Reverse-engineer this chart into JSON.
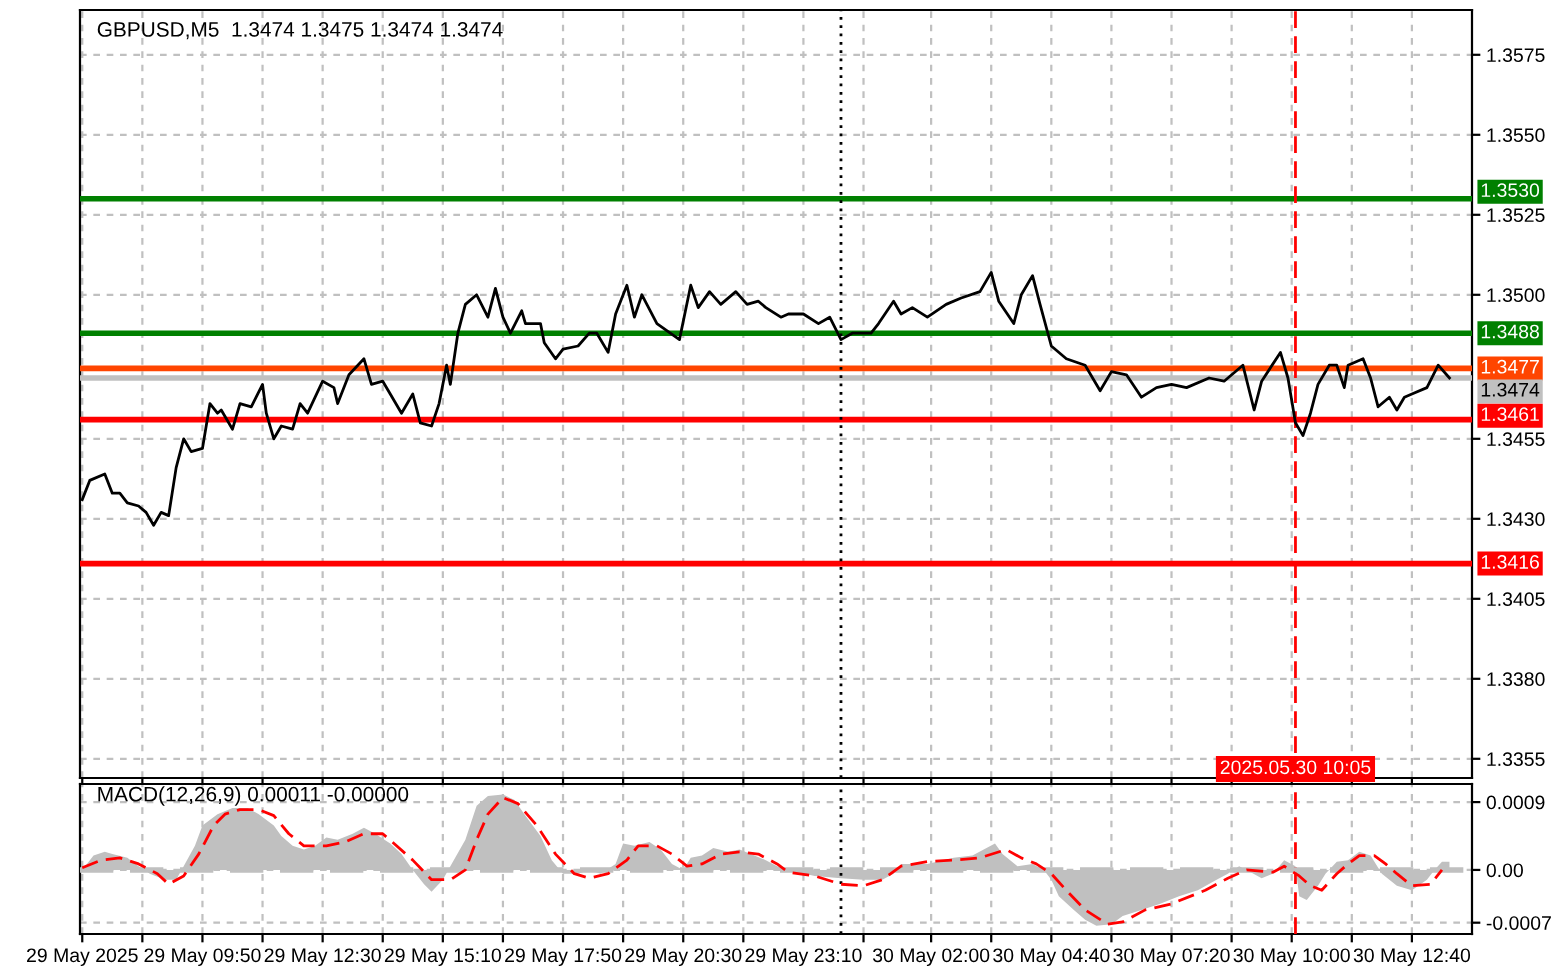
{
  "chart_data": [
    {
      "type": "line",
      "title": "GBPUSD,M5  1.3474 1.3475 1.3474 1.3474",
      "series": [
        {
          "color": "#000000",
          "x": [
            "2025-05-29T07:10",
            "2025-05-29T07:20",
            "2025-05-29T07:40",
            "2025-05-29T07:50",
            "2025-05-29T08:00",
            "2025-05-29T08:10",
            "2025-05-29T08:25",
            "2025-05-29T08:35",
            "2025-05-29T08:45",
            "2025-05-29T08:55",
            "2025-05-29T09:05",
            "2025-05-29T09:15",
            "2025-05-29T09:25",
            "2025-05-29T09:35",
            "2025-05-29T09:50",
            "2025-05-29T10:00",
            "2025-05-29T10:10",
            "2025-05-29T10:15",
            "2025-05-29T10:30",
            "2025-05-29T10:40",
            "2025-05-29T10:55",
            "2025-05-29T11:10",
            "2025-05-29T11:15",
            "2025-05-29T11:25",
            "2025-05-29T11:35",
            "2025-05-29T11:50",
            "2025-05-29T12:00",
            "2025-05-29T12:10",
            "2025-05-29T12:20",
            "2025-05-29T12:30",
            "2025-05-29T12:45",
            "2025-05-29T12:50",
            "2025-05-29T13:05",
            "2025-05-29T13:25",
            "2025-05-29T13:35",
            "2025-05-29T13:50",
            "2025-05-29T14:00",
            "2025-05-29T14:15",
            "2025-05-29T14:30",
            "2025-05-29T14:40",
            "2025-05-29T14:55",
            "2025-05-29T15:05",
            "2025-05-29T15:15",
            "2025-05-29T15:20",
            "2025-05-29T15:30",
            "2025-05-29T15:40",
            "2025-05-29T15:55",
            "2025-05-29T16:10",
            "2025-05-29T16:20",
            "2025-05-29T16:30",
            "2025-05-29T16:40",
            "2025-05-29T16:55",
            "2025-05-29T17:00",
            "2025-05-29T17:20",
            "2025-05-29T17:25",
            "2025-05-29T17:40",
            "2025-05-29T17:50",
            "2025-05-29T18:10",
            "2025-05-29T18:25",
            "2025-05-29T18:35",
            "2025-05-29T18:50",
            "2025-05-29T19:00",
            "2025-05-29T19:15",
            "2025-05-29T19:25",
            "2025-05-29T19:35",
            "2025-05-29T19:55",
            "2025-05-29T20:25",
            "2025-05-29T20:40",
            "2025-05-29T20:50",
            "2025-05-29T21:05",
            "2025-05-29T21:20",
            "2025-05-29T21:40",
            "2025-05-29T21:55",
            "2025-05-29T22:10",
            "2025-05-29T22:20",
            "2025-05-29T22:40",
            "2025-05-29T22:50",
            "2025-05-29T23:10",
            "2025-05-29T23:30",
            "2025-05-29T23:45",
            "2025-05-30T00:00",
            "2025-05-30T00:15",
            "2025-05-30T00:40",
            "2025-05-30T00:50",
            "2025-05-30T01:10",
            "2025-05-30T01:20",
            "2025-05-30T01:35",
            "2025-05-30T01:55",
            "2025-05-30T02:20",
            "2025-05-30T02:40",
            "2025-05-30T03:05",
            "2025-05-30T03:20",
            "2025-05-30T03:30",
            "2025-05-30T03:50",
            "2025-05-30T04:00",
            "2025-05-30T04:15",
            "2025-05-30T04:25",
            "2025-05-30T04:40",
            "2025-05-30T05:00",
            "2025-05-30T05:25",
            "2025-05-30T05:45",
            "2025-05-30T06:00",
            "2025-05-30T06:20",
            "2025-05-30T06:40",
            "2025-05-30T07:00",
            "2025-05-30T07:20",
            "2025-05-30T07:40",
            "2025-05-30T08:10",
            "2025-05-30T08:30",
            "2025-05-30T08:55",
            "2025-05-30T09:10",
            "2025-05-30T09:20",
            "2025-05-30T09:45",
            "2025-05-30T09:55",
            "2025-05-30T10:05",
            "2025-05-30T10:15",
            "2025-05-30T10:25",
            "2025-05-30T10:35",
            "2025-05-30T10:50",
            "2025-05-30T11:00",
            "2025-05-30T11:10",
            "2025-05-30T11:15",
            "2025-05-30T11:35",
            "2025-05-30T11:45",
            "2025-05-30T11:55",
            "2025-05-30T12:10",
            "2025-05-30T12:20",
            "2025-05-30T12:30",
            "2025-05-30T12:40",
            "2025-05-30T13:00",
            "2025-05-30T13:15",
            "2025-05-30T13:30"
          ],
          "values": [
            1.3436,
            1.3442,
            1.3444,
            1.3438,
            1.3438,
            1.3435,
            1.3434,
            1.3432,
            1.3428,
            1.3432,
            1.3431,
            1.3446,
            1.3455,
            1.3451,
            1.3452,
            1.3466,
            1.3463,
            1.3464,
            1.3458,
            1.3466,
            1.3465,
            1.3472,
            1.3463,
            1.3455,
            1.3459,
            1.3458,
            1.3466,
            1.3463,
            1.3468,
            1.3473,
            1.3471,
            1.3466,
            1.3475,
            1.348,
            1.3472,
            1.3473,
            1.3469,
            1.3463,
            1.3469,
            1.346,
            1.3459,
            1.3466,
            1.3478,
            1.3472,
            1.3488,
            1.3497,
            1.35,
            1.3493,
            1.3502,
            1.3493,
            1.3488,
            1.3495,
            1.3491,
            1.3491,
            1.3485,
            1.348,
            1.3483,
            1.3484,
            1.3488,
            1.3488,
            1.3482,
            1.3494,
            1.3503,
            1.3493,
            1.35,
            1.3491,
            1.3486,
            1.3503,
            1.3496,
            1.3501,
            1.3497,
            1.3501,
            1.3497,
            1.3498,
            1.3496,
            1.3493,
            1.3494,
            1.3494,
            1.3491,
            1.3493,
            1.3486,
            1.3488,
            1.3488,
            1.3491,
            1.3498,
            1.3494,
            1.3496,
            1.3493,
            1.3497,
            1.3499,
            1.3501,
            1.3507,
            1.3498,
            1.3491,
            1.35,
            1.3506,
            1.3497,
            1.3484,
            1.348,
            1.3478,
            1.347,
            1.3476,
            1.3475,
            1.3468,
            1.3471,
            1.3472,
            1.3471,
            1.3474,
            1.3473,
            1.3478,
            1.3464,
            1.3473,
            1.3482,
            1.3474,
            1.346,
            1.3456,
            1.3463,
            1.3472,
            1.3478,
            1.3478,
            1.3471,
            1.3478,
            1.348,
            1.3474,
            1.3465,
            1.3468,
            1.3464,
            1.3468,
            1.3469,
            1.3471,
            1.3478,
            1.3474
          ]
        }
      ],
      "xlim": [
        "2025-05-29T07:07",
        "2025-05-30T14:00"
      ],
      "ylim": [
        1.3349,
        1.3589
      ],
      "xticks": [
        {
          "value": "2025-05-29T07:10",
          "label": null
        },
        {
          "value": "2025-05-29T08:30",
          "label": null
        },
        {
          "value": "2025-05-29T09:50",
          "label": null
        },
        {
          "value": "2025-05-29T11:10",
          "label": null
        },
        {
          "value": "2025-05-29T12:30",
          "label": null
        },
        {
          "value": "2025-05-29T13:50",
          "label": null
        },
        {
          "value": "2025-05-29T15:10",
          "label": null
        },
        {
          "value": "2025-05-29T16:30",
          "label": null
        },
        {
          "value": "2025-05-29T17:50",
          "label": null
        },
        {
          "value": "2025-05-29T19:10",
          "label": null
        },
        {
          "value": "2025-05-29T20:30",
          "label": null
        },
        {
          "value": "2025-05-29T21:50",
          "label": null
        },
        {
          "value": "2025-05-29T23:10",
          "label": null
        },
        {
          "value": "2025-05-30T00:30",
          "label": null
        },
        {
          "value": "2025-05-30T02:00",
          "label": null
        },
        {
          "value": "2025-05-30T03:20",
          "label": null
        },
        {
          "value": "2025-05-30T04:40",
          "label": null
        },
        {
          "value": "2025-05-30T06:00",
          "label": null
        },
        {
          "value": "2025-05-30T07:20",
          "label": null
        },
        {
          "value": "2025-05-30T08:40",
          "label": null
        },
        {
          "value": "2025-05-30T10:00",
          "label": null
        },
        {
          "value": "2025-05-30T11:20",
          "label": null
        },
        {
          "value": "2025-05-30T12:40",
          "label": null
        }
      ],
      "yticks": [
        1.3355,
        {
          "value": 1.338,
          "label": "1.3380"
        },
        1.3405,
        {
          "value": 1.343,
          "label": "1.3430"
        },
        1.3455,
        {
          "value": 1.35,
          "label": "1.3500"
        },
        1.3525,
        {
          "value": 1.355,
          "label": "1.3550"
        },
        1.3575
      ],
      "tick_labels": "y",
      "grid": true,
      "ref_lines": [
        {
          "axis": "y",
          "value": 1.353,
          "label": "1.3530",
          "color": "#008000"
        },
        {
          "axis": "y",
          "value": 1.3488,
          "label": "1.3488",
          "color": "#008000"
        },
        {
          "axis": "y",
          "value": 1.3477,
          "label": "1.3477",
          "color": "#ff4500"
        },
        {
          "axis": "y",
          "value": 1.3474,
          "label": "1.3474",
          "color": "#c0c0c0"
        },
        {
          "axis": "y",
          "value": 1.3461,
          "label": "1.3461",
          "color": "#ff0000"
        },
        {
          "axis": "y",
          "value": 1.3416,
          "label": "1.3416",
          "color": "#ff0000"
        },
        {
          "axis": "x",
          "value": "2025-05-30T00:00",
          "color": "#000000",
          "line_style": "dotted"
        },
        {
          "axis": "x",
          "value": "2025-05-30T10:05",
          "label": "2025.05.30 10:05",
          "color": "#ff0000",
          "line_style": "dashed"
        }
      ]
    },
    {
      "type": "area",
      "title": "MACD(12,26,9) 0.00011 -0.00000",
      "series": [
        {
          "type": "area",
          "color": "#c0c0c0",
          "x": [
            "2025-05-29T07:10",
            "2025-05-29T07:25",
            "2025-05-29T07:40",
            "2025-05-29T07:50",
            "2025-05-29T08:10",
            "2025-05-29T08:25",
            "2025-05-29T08:40",
            "2025-05-29T09:00",
            "2025-05-29T09:15",
            "2025-05-29T09:25",
            "2025-05-29T09:40",
            "2025-05-29T09:50",
            "2025-05-29T10:10",
            "2025-05-29T10:30",
            "2025-05-29T10:50",
            "2025-05-29T11:05",
            "2025-05-29T11:25",
            "2025-05-29T11:35",
            "2025-05-29T11:50",
            "2025-05-29T12:05",
            "2025-05-29T12:20",
            "2025-05-29T12:35",
            "2025-05-29T12:50",
            "2025-05-29T13:10",
            "2025-05-29T13:25",
            "2025-05-29T13:40",
            "2025-05-29T14:00",
            "2025-05-29T14:15",
            "2025-05-29T14:30",
            "2025-05-29T14:45",
            "2025-05-29T14:55",
            "2025-05-29T15:10",
            "2025-05-29T15:20",
            "2025-05-29T15:40",
            "2025-05-29T15:55",
            "2025-05-29T16:10",
            "2025-05-29T16:30",
            "2025-05-29T16:45",
            "2025-05-29T17:00",
            "2025-05-29T17:20",
            "2025-05-29T17:35",
            "2025-05-29T17:50",
            "2025-05-29T18:10",
            "2025-05-29T18:25",
            "2025-05-29T18:40",
            "2025-05-29T19:00",
            "2025-05-29T19:10",
            "2025-05-29T19:25",
            "2025-05-29T19:45",
            "2025-05-29T20:00",
            "2025-05-29T20:15",
            "2025-05-29T20:30",
            "2025-05-29T20:40",
            "2025-05-29T20:55",
            "2025-05-29T21:10",
            "2025-05-29T21:30",
            "2025-05-29T21:45",
            "2025-05-29T22:00",
            "2025-05-29T22:20",
            "2025-05-29T22:35",
            "2025-05-29T22:50",
            "2025-05-29T23:25",
            "2025-05-30T00:00",
            "2025-05-30T00:30",
            "2025-05-30T00:55",
            "2025-05-30T01:10",
            "2025-05-30T01:20",
            "2025-05-30T01:55",
            "2025-05-30T02:30",
            "2025-05-30T02:55",
            "2025-05-30T03:10",
            "2025-05-30T03:25",
            "2025-05-30T03:35",
            "2025-05-30T03:55",
            "2025-05-30T04:15",
            "2025-05-30T04:30",
            "2025-05-30T04:40",
            "2025-05-30T04:50",
            "2025-05-30T05:10",
            "2025-05-30T05:25",
            "2025-05-30T05:40",
            "2025-05-30T06:00",
            "2025-05-30T06:15",
            "2025-05-30T06:40",
            "2025-05-30T07:05",
            "2025-05-30T07:30",
            "2025-05-30T07:55",
            "2025-05-30T08:20",
            "2025-05-30T08:35",
            "2025-05-30T08:50",
            "2025-05-30T09:00",
            "2025-05-30T09:20",
            "2025-05-30T09:35",
            "2025-05-30T09:50",
            "2025-05-30T10:05",
            "2025-05-30T10:10",
            "2025-05-30T10:20",
            "2025-05-30T10:35",
            "2025-05-30T10:45",
            "2025-05-30T11:00",
            "2025-05-30T11:15",
            "2025-05-30T11:30",
            "2025-05-30T11:45",
            "2025-05-30T12:00",
            "2025-05-30T12:20",
            "2025-05-30T12:40",
            "2025-05-30T13:00",
            "2025-05-30T13:10",
            "2025-05-30T13:20",
            "2025-05-30T13:30"
          ],
          "values": [
            0,
            0.00019,
            0.00024,
            0.00021,
            0.00016,
            5e-05,
            -5e-05,
            -0.00013,
            -0.00013,
            5e-05,
            0.00032,
            0.00059,
            0.00074,
            0.00082,
            0.00082,
            0.00074,
            0.00059,
            0.00045,
            0.00032,
            0.00027,
            0.00032,
            0.00043,
            0.0004,
            0.00048,
            0.00056,
            0.00048,
            0.00035,
            0.00021,
            0,
            -0.00019,
            -0.00029,
            -0.00013,
            5e-05,
            0.0004,
            0.00085,
            0.00098,
            0.001,
            0.00093,
            0.00072,
            0.00045,
            0.00013,
            -5e-05,
            -5e-05,
            0,
            -5e-05,
            8e-05,
            0.00035,
            0.00032,
            0.00037,
            0.00027,
            8e-05,
            0,
            0.00016,
            0.00019,
            0.00029,
            0.00024,
            0.00027,
            0.00021,
            0.00013,
            5e-05,
            0,
            -8e-05,
            -0.00011,
            -0.00013,
            -0.00013,
            -5e-05,
            8e-05,
            8e-05,
            0.00016,
            0.00019,
            0.00027,
            0.00035,
            0.00021,
            5e-05,
            8e-05,
            0,
            -0.00013,
            -0.00035,
            -0.00053,
            -0.00066,
            -0.00074,
            -0.00072,
            -0.00061,
            -0.00053,
            -0.00045,
            -0.00035,
            -0.00027,
            -0.00013,
            -5e-05,
            5e-05,
            0,
            -0.00011,
            -5e-05,
            0.00013,
            5e-05,
            -0.00035,
            -0.0004,
            -0.00021,
            -5e-05,
            0.00011,
            0.00013,
            0.00024,
            0.00019,
            -5e-05,
            -0.00021,
            -0.00027,
            -0.00013,
            0,
            0.00011,
            0.00011
          ]
        },
        {
          "type": "line",
          "color": "#ff0000",
          "line_style": "dashed",
          "x": [
            "2025-05-29T07:10",
            "2025-05-29T07:35",
            "2025-05-29T08:00",
            "2025-05-29T08:25",
            "2025-05-29T08:50",
            "2025-05-29T09:05",
            "2025-05-29T09:25",
            "2025-05-29T09:45",
            "2025-05-29T10:05",
            "2025-05-29T10:20",
            "2025-05-29T10:40",
            "2025-05-29T11:05",
            "2025-05-29T11:25",
            "2025-05-29T11:45",
            "2025-05-29T12:05",
            "2025-05-29T12:35",
            "2025-05-29T13:00",
            "2025-05-29T13:25",
            "2025-05-29T13:50",
            "2025-05-29T14:05",
            "2025-05-29T14:30",
            "2025-05-29T14:55",
            "2025-05-29T15:20",
            "2025-05-29T15:40",
            "2025-05-29T15:55",
            "2025-05-29T16:10",
            "2025-05-29T16:30",
            "2025-05-29T16:50",
            "2025-05-29T17:15",
            "2025-05-29T17:40",
            "2025-05-29T18:05",
            "2025-05-29T18:25",
            "2025-05-29T18:50",
            "2025-05-29T19:15",
            "2025-05-29T19:30",
            "2025-05-29T19:55",
            "2025-05-29T20:15",
            "2025-05-29T20:35",
            "2025-05-29T20:55",
            "2025-05-29T21:20",
            "2025-05-29T21:45",
            "2025-05-29T22:10",
            "2025-05-29T22:35",
            "2025-05-29T22:50",
            "2025-05-29T23:25",
            "2025-05-30T00:00",
            "2025-05-30T00:30",
            "2025-05-30T00:55",
            "2025-05-30T01:20",
            "2025-05-30T01:55",
            "2025-05-30T02:30",
            "2025-05-30T03:05",
            "2025-05-30T03:40",
            "2025-05-30T04:00",
            "2025-05-30T04:20",
            "2025-05-30T04:40",
            "2025-05-30T05:00",
            "2025-05-30T05:25",
            "2025-05-30T05:55",
            "2025-05-30T06:15",
            "2025-05-30T06:45",
            "2025-05-30T07:20",
            "2025-05-30T08:05",
            "2025-05-30T08:35",
            "2025-05-30T09:00",
            "2025-05-30T09:35",
            "2025-05-30T09:50",
            "2025-05-30T10:10",
            "2025-05-30T10:25",
            "2025-05-30T10:40",
            "2025-05-30T11:00",
            "2025-05-30T11:15",
            "2025-05-30T11:30",
            "2025-05-30T11:50",
            "2025-05-30T12:05",
            "2025-05-30T12:20",
            "2025-05-30T12:40",
            "2025-05-30T13:05",
            "2025-05-30T13:20"
          ],
          "values": [
            3e-05,
            0.00013,
            0.00016,
            8e-05,
            -5e-05,
            -0.00019,
            -8e-05,
            0.00021,
            0.00059,
            0.00074,
            0.0008,
            0.0008,
            0.00072,
            0.00048,
            0.00032,
            0.00032,
            0.00037,
            0.00048,
            0.00048,
            0.00035,
            0.00013,
            -0.00013,
            -0.00013,
            0,
            0.0004,
            0.00074,
            0.00096,
            0.00088,
            0.00059,
            0.00021,
            -5e-05,
            -0.00011,
            -5e-05,
            0.00013,
            0.00032,
            0.00032,
            0.00021,
            5e-05,
            8e-05,
            0.00021,
            0.00024,
            0.00021,
            8e-05,
            -3e-05,
            -8e-05,
            -0.00019,
            -0.00021,
            -0.00013,
            5e-05,
            0.00011,
            0.00013,
            0.00016,
            0.00027,
            0.00016,
            8e-05,
            -5e-05,
            -0.00027,
            -0.00053,
            -0.00072,
            -0.00069,
            -0.00053,
            -0.00045,
            -0.00027,
            -0.00011,
            0,
            -3e-05,
            5e-05,
            -8e-05,
            -0.00021,
            -0.00027,
            -5e-05,
            8e-05,
            0.00019,
            0.00019,
            8e-05,
            -5e-05,
            -0.00021,
            -0.00019,
            0
          ]
        }
      ],
      "xlim": [
        "2025-05-29T07:07",
        "2025-05-30T14:00"
      ],
      "ylim": [
        -0.00085,
        0.00114
      ],
      "xticks": [
        {
          "value": "2025-05-29T07:10",
          "label": "29 May 2025"
        },
        {
          "value": "2025-05-29T08:30",
          "label": null
        },
        {
          "value": "2025-05-29T09:50",
          "label": "29 May 09:50"
        },
        {
          "value": "2025-05-29T11:10",
          "label": null
        },
        {
          "value": "2025-05-29T12:30",
          "label": "29 May 12:30"
        },
        {
          "value": "2025-05-29T13:50",
          "label": null
        },
        {
          "value": "2025-05-29T15:10",
          "label": "29 May 15:10"
        },
        {
          "value": "2025-05-29T16:30",
          "label": null
        },
        {
          "value": "2025-05-29T17:50",
          "label": "29 May 17:50"
        },
        {
          "value": "2025-05-29T19:10",
          "label": null
        },
        {
          "value": "2025-05-29T20:30",
          "label": "29 May 20:30"
        },
        {
          "value": "2025-05-29T21:50",
          "label": null
        },
        {
          "value": "2025-05-29T23:10",
          "label": "29 May 23:10"
        },
        {
          "value": "2025-05-30T00:30",
          "label": null
        },
        {
          "value": "2025-05-30T02:00",
          "label": "30 May 02:00"
        },
        {
          "value": "2025-05-30T03:20",
          "label": null
        },
        {
          "value": "2025-05-30T04:40",
          "label": "30 May 04:40"
        },
        {
          "value": "2025-05-30T06:00",
          "label": null
        },
        {
          "value": "2025-05-30T07:20",
          "label": "30 May 07:20"
        },
        {
          "value": "2025-05-30T08:40",
          "label": null
        },
        {
          "value": "2025-05-30T10:00",
          "label": "30 May 10:00"
        },
        {
          "value": "2025-05-30T11:20",
          "label": null
        },
        {
          "value": "2025-05-30T12:40",
          "label": "30 May 12:40"
        }
      ],
      "yticks": [
        {
          "value": -0.0007,
          "label": "-0.0007"
        },
        {
          "value": 0,
          "label": "0.00"
        },
        0.0009
      ],
      "grid": true,
      "ref_lines": [
        {
          "axis": "x",
          "value": "2025-05-30T00:00",
          "color": "#000000",
          "line_style": "dotted"
        },
        {
          "axis": "x",
          "value": "2025-05-30T10:05",
          "color": "#ff0000",
          "line_style": "dashed"
        },
        {
          "axis": "y",
          "value": 0,
          "color": "#c0c0c0",
          "line_style": "dashed"
        }
      ]
    }
  ]
}
